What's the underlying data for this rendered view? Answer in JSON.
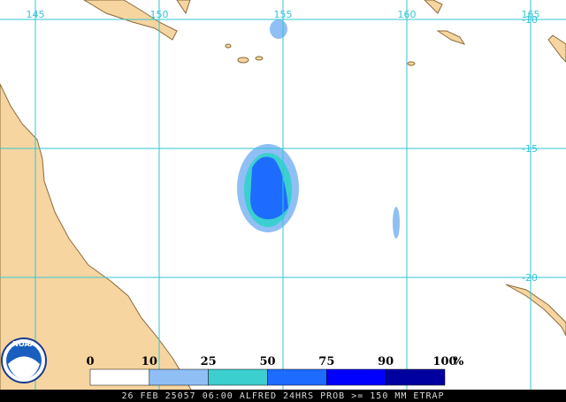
{
  "map": {
    "lon_labels": [
      "145",
      "150",
      "155",
      "160",
      "165"
    ],
    "lat_labels": [
      "-10",
      "-15",
      "-20"
    ]
  },
  "legend": {
    "ticks": [
      "0",
      "10",
      "25",
      "50",
      "75",
      "90",
      "100"
    ],
    "unit": "%",
    "colors": [
      "#ffffff",
      "#8fbff5",
      "#3ccfcf",
      "#1e6cff",
      "#0000ff",
      "#0000a0"
    ]
  },
  "logo": "NOAA",
  "footer": "26 FEB 25057 06:00 ALFRED 24HRS PROB >= 150 MM ETRAP"
}
